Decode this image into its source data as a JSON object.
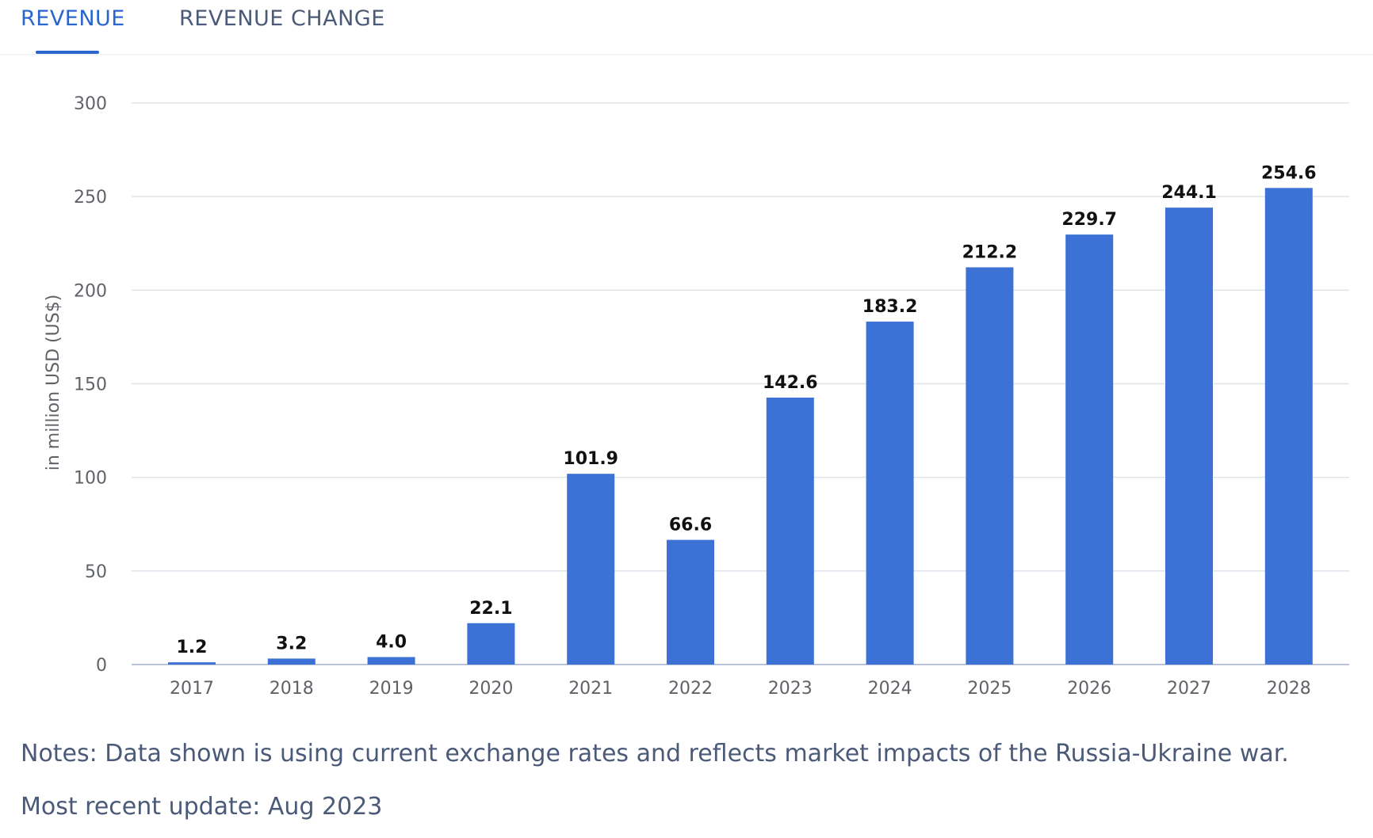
{
  "tabs": {
    "revenue": "REVENUE",
    "revenue_change": "REVENUE CHANGE"
  },
  "colors": {
    "bar": "#3c72d6",
    "accent": "#2b66cc",
    "grid": "#dfe3ea",
    "axis_text": "#5f6368",
    "label_text": "#111111",
    "body_text": "#4a5a78"
  },
  "chart_data": {
    "type": "bar",
    "title": "",
    "xlabel": "",
    "ylabel": "in million USD (US$)",
    "categories": [
      "2017",
      "2018",
      "2019",
      "2020",
      "2021",
      "2022",
      "2023",
      "2024",
      "2025",
      "2026",
      "2027",
      "2028"
    ],
    "values": [
      1.2,
      3.2,
      4.0,
      22.1,
      101.9,
      66.6,
      142.6,
      183.2,
      212.2,
      229.7,
      244.1,
      254.6
    ],
    "value_labels": [
      "1.2",
      "3.2",
      "4.0",
      "22.1",
      "101.9",
      "66.6",
      "142.6",
      "183.2",
      "212.2",
      "229.7",
      "244.1",
      "254.6"
    ],
    "yticks": [
      0,
      50,
      100,
      150,
      200,
      250,
      300
    ],
    "ylim": [
      0,
      300
    ],
    "grid": true
  },
  "footer": {
    "notes": "Notes: Data shown is using current exchange rates and reflects market impacts of the Russia-Ukraine war.",
    "update": "Most recent update: Aug 2023"
  }
}
